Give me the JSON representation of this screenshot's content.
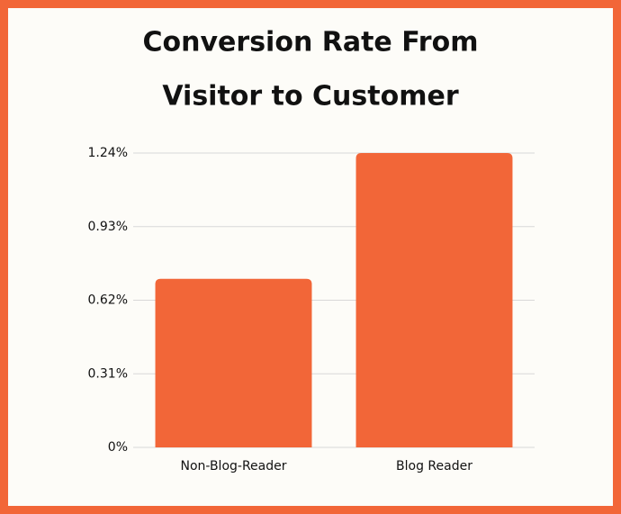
{
  "chart_data": {
    "type": "bar",
    "title": [
      "Conversion Rate From",
      "Visitor to Customer"
    ],
    "categories": [
      "Non-Blog-Reader",
      "Blog Reader"
    ],
    "values": [
      0.71,
      1.24
    ],
    "color": "#f26638",
    "ylim": [
      0,
      1.24
    ],
    "yticks": [
      {
        "value": 0,
        "label": "0%"
      },
      {
        "value": 0.31,
        "label": "0.31%"
      },
      {
        "value": 0.62,
        "label": "0.62%"
      },
      {
        "value": 0.93,
        "label": "0.93%"
      },
      {
        "value": 1.24,
        "label": "1.24%"
      }
    ],
    "grid": true
  }
}
